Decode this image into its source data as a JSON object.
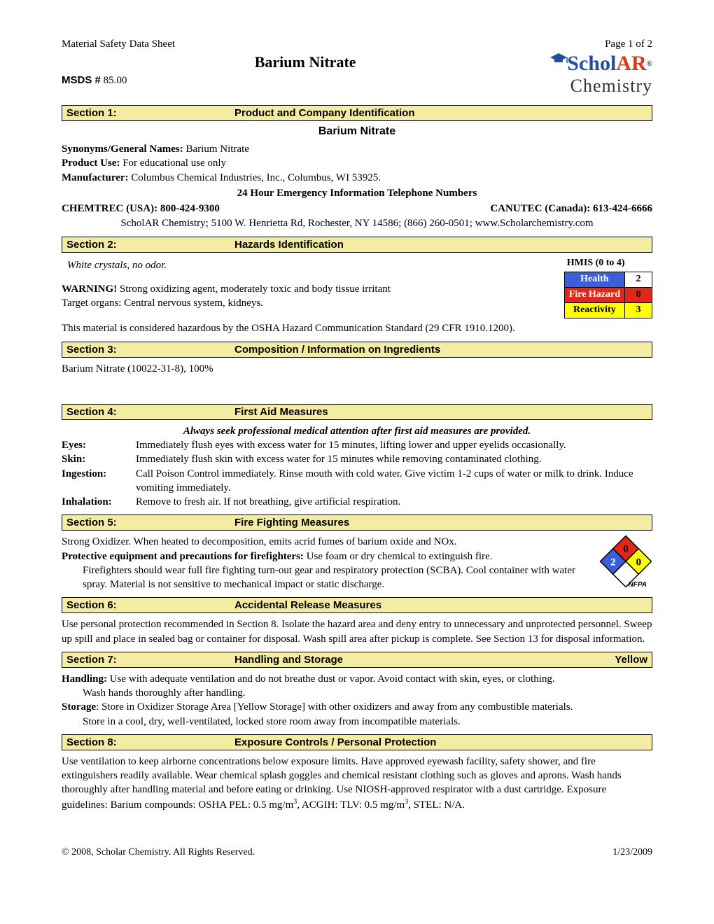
{
  "header": {
    "doc_type": "Material Safety Data Sheet",
    "page_info": "Page 1 of 2",
    "product_title": "Barium Nitrate",
    "msds_label": "MSDS #",
    "msds_number": "85.00",
    "logo": {
      "part1": "Schol",
      "part2": "AR",
      "sub": "Chemistry",
      "reg": "®"
    }
  },
  "section1": {
    "label": "Section 1:",
    "title": "Product and Company Identification",
    "product_name": "Barium Nitrate",
    "synonyms_label": "Synonyms/General Names:",
    "synonyms": "Barium Nitrate",
    "use_label": "Product Use:",
    "use": "For educational use only",
    "mfr_label": "Manufacturer:",
    "mfr": "Columbus Chemical Industries, Inc., Columbus, WI  53925.",
    "emergency_title": "24 Hour Emergency Information Telephone Numbers",
    "tel_left_label": "CHEMTREC (USA):",
    "tel_left": "800-424-9300",
    "tel_right_label": "CANUTEC (Canada):",
    "tel_right": "613-424-6666",
    "scholar_addr": "ScholAR Chemistry; 5100 W. Henrietta Rd, Rochester, NY 14586; (866) 260-0501; www.Scholarchemistry.com"
  },
  "section2": {
    "label": "Section 2:",
    "title": "Hazards Identification",
    "appearance": "White crystals, no odor.",
    "warning_label": "WARNING!",
    "warning": "Strong oxidizing agent, moderately toxic and body tissue irritant",
    "targets": "Target organs: Central nervous system, kidneys.",
    "osha": "This material is considered hazardous by the OSHA Hazard Communication Standard (29 CFR 1910.1200).",
    "hmis_title": "HMIS (0 to 4)",
    "hmis": {
      "rows": [
        {
          "label": "Health",
          "val": "2",
          "bg": "#3b5fd9",
          "fg": "#ffffff",
          "valbg": "#ffffff",
          "valfg": "#000000"
        },
        {
          "label": "Fire Hazard",
          "val": "0",
          "bg": "#e22617",
          "fg": "#ffffff",
          "valbg": "#e22617",
          "valfg": "#000000"
        },
        {
          "label": "Reactivity",
          "val": "3",
          "bg": "#ffff00",
          "fg": "#000000",
          "valbg": "#ffff00",
          "valfg": "#000000"
        }
      ]
    }
  },
  "section3": {
    "label": "Section 3:",
    "title": "Composition / Information on Ingredients",
    "text": "Barium Nitrate (10022-31-8), 100%"
  },
  "section4": {
    "label": "Section 4:",
    "title": "First Aid Measures",
    "intro": "Always seek professional medical attention after first aid measures are provided.",
    "items": [
      {
        "label": "Eyes:",
        "text": "Immediately flush eyes with excess water for 15 minutes, lifting lower and upper eyelids occasionally."
      },
      {
        "label": "Skin:",
        "text": "Immediately flush skin with excess water for 15 minutes while removing contaminated clothing."
      },
      {
        "label": "Ingestion:",
        "text": "Call Poison Control immediately. Rinse mouth with cold water. Give victim 1-2 cups of water or milk to drink. Induce vomiting immediately."
      },
      {
        "label": "Inhalation:",
        "text": "Remove to fresh air. If not breathing, give artificial respiration."
      }
    ]
  },
  "section5": {
    "label": "Section 5:",
    "title": "Fire Fighting Measures",
    "line1": "Strong Oxidizer. When heated to decomposition, emits acrid fumes of barium oxide and NOx.",
    "prot_label": "Protective equipment and precautions for firefighters:",
    "prot_text": "Use foam or dry chemical to extinguish fire. Firefighters should wear full fire fighting turn-out gear and respiratory protection (SCBA). Cool container with water spray. Material is not sensitive to mechanical impact or static discharge.",
    "nfpa": {
      "top": {
        "val": "0",
        "fill": "#e22617"
      },
      "left": {
        "val": "2",
        "fill": "#3b5fd9"
      },
      "right": {
        "val": "0",
        "fill": "#ffff00"
      },
      "bottom": {
        "val": "",
        "fill": "#ffffff"
      },
      "label": "NFPA"
    }
  },
  "section6": {
    "label": "Section 6:",
    "title": "Accidental Release Measures",
    "text": "Use personal protection recommended in Section 8. Isolate the hazard area and deny entry to unnecessary and unprotected personnel. Sweep up spill and place in sealed bag or container for disposal. Wash spill area after pickup is complete. See Section 13 for disposal information."
  },
  "section7": {
    "label": "Section 7:",
    "title": "Handling and Storage",
    "right": "Yellow",
    "handling_label": "Handling:",
    "handling": "Use with adequate ventilation and do not breathe dust or vapor. Avoid contact with skin, eyes, or clothing. Wash hands thoroughly after handling.",
    "storage_label": "Storage",
    "storage": ": Store in Oxidizer Storage Area [Yellow Storage] with other oxidizers and away from any combustible materials. Store in a cool, dry, well-ventilated, locked store room away from incompatible materials."
  },
  "section8": {
    "label": "Section 8:",
    "title": "Exposure Controls / Personal Protection",
    "text_pre": "Use ventilation to keep airborne concentrations below exposure limits. Have approved eyewash facility, safety shower, and fire extinguishers readily available. Wear chemical splash goggles and chemical resistant clothing such as gloves and aprons. Wash hands thoroughly after handling material and before eating or drinking. Use NIOSH-approved respirator with a dust cartridge. Exposure guidelines: Barium compounds: OSHA PEL: 0.5 mg/m",
    "text_mid": ", ACGIH: TLV: 0.5 mg/m",
    "text_post": ", STEL: N/A."
  },
  "footer": {
    "copyright": "© 2008, Scholar Chemistry. All Rights Reserved.",
    "date": "1/23/2009"
  },
  "colors": {
    "section_bg": "#f5eca3",
    "border": "#000000"
  }
}
